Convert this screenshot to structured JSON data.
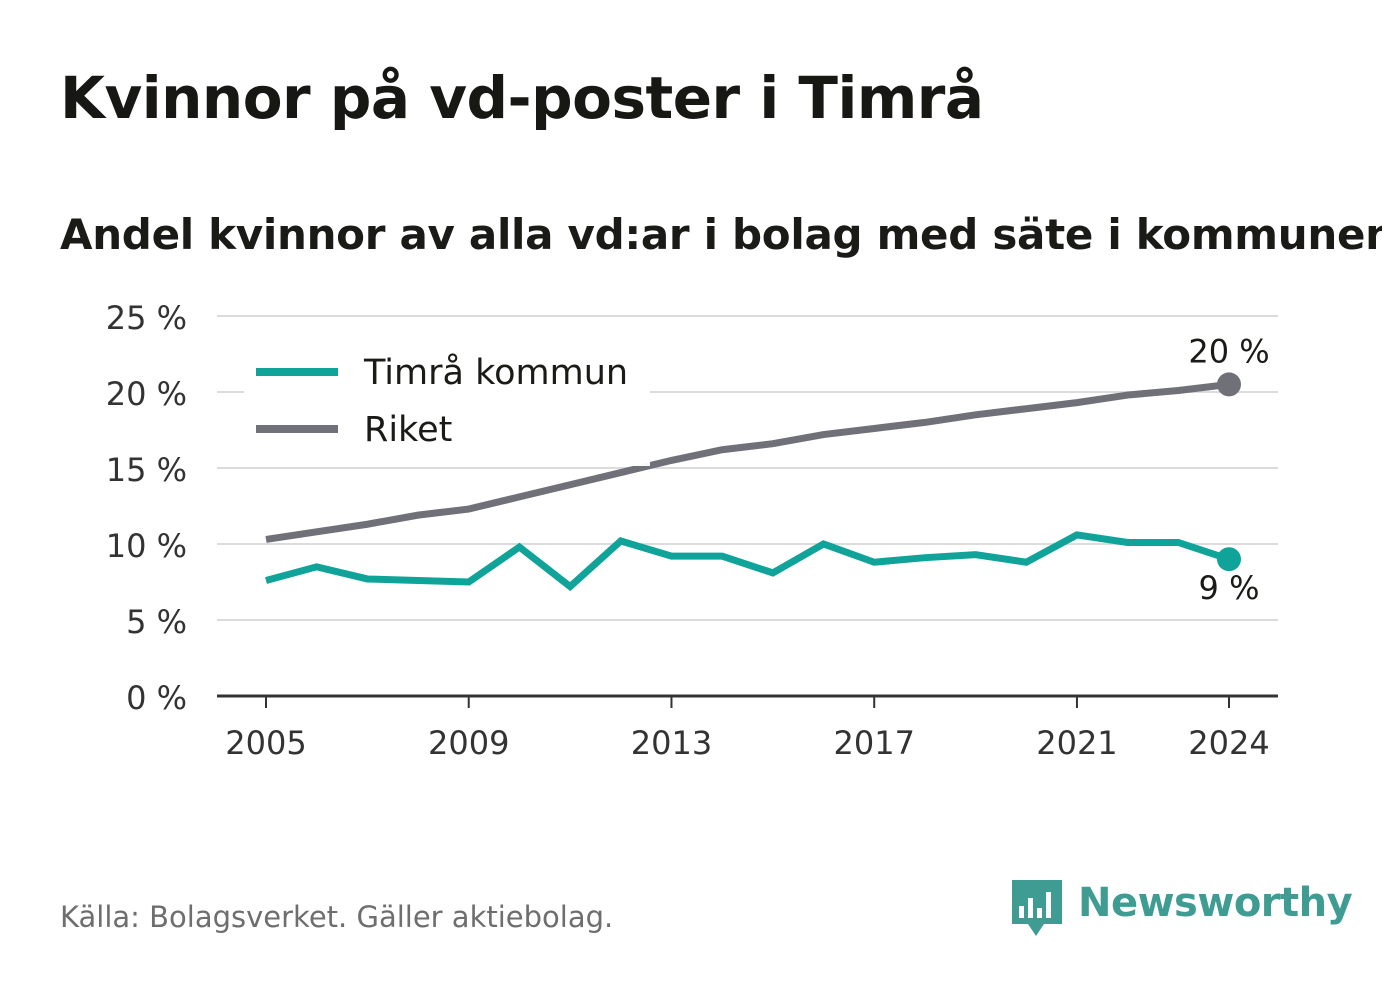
{
  "title": "Kvinnor på vd-poster i Timrå",
  "subtitle": "Andel kvinnor av alla vd:ar i bolag med säte i kommunen",
  "footer": {
    "source": "Källa: Bolagsverket. Gäller aktiebolag.",
    "brand": "Newsworthy",
    "brand_icon": "newsworthy-logo-icon"
  },
  "colors": {
    "timra": "#0fa39a",
    "riket": "#707078",
    "grid": "#dcdcdc",
    "axis": "#333333",
    "brand": "#3f9c93"
  },
  "chart_data": {
    "type": "line",
    "title": "Kvinnor på vd-poster i Timrå",
    "subtitle": "Andel kvinnor av alla vd:ar i bolag med säte i kommunen",
    "xlabel": "",
    "ylabel": "",
    "x": [
      2005,
      2006,
      2007,
      2008,
      2009,
      2010,
      2011,
      2012,
      2013,
      2014,
      2015,
      2016,
      2017,
      2018,
      2019,
      2020,
      2021,
      2022,
      2023,
      2024
    ],
    "x_ticks": [
      "2005",
      "2009",
      "2013",
      "2017",
      "2021",
      "2024"
    ],
    "y_ticks": [
      "0 %",
      "5 %",
      "10 %",
      "15 %",
      "20 %",
      "25 %"
    ],
    "ylim": [
      0,
      25
    ],
    "grid": true,
    "legend": "top-left",
    "series": [
      {
        "name": "Timrå kommun",
        "color": "#0fa39a",
        "values": [
          7.6,
          8.5,
          7.7,
          7.6,
          7.5,
          9.8,
          7.2,
          10.2,
          9.2,
          9.2,
          8.1,
          10.0,
          8.8,
          9.1,
          9.3,
          8.8,
          10.6,
          10.1,
          10.1,
          9.0
        ],
        "end_label": "9 %"
      },
      {
        "name": "Riket",
        "color": "#707078",
        "values": [
          10.3,
          10.8,
          11.3,
          11.9,
          12.3,
          13.1,
          13.9,
          14.7,
          15.5,
          16.2,
          16.6,
          17.2,
          17.6,
          18.0,
          18.5,
          18.9,
          19.3,
          19.8,
          20.1,
          20.5
        ],
        "end_label": "20 %"
      }
    ]
  }
}
